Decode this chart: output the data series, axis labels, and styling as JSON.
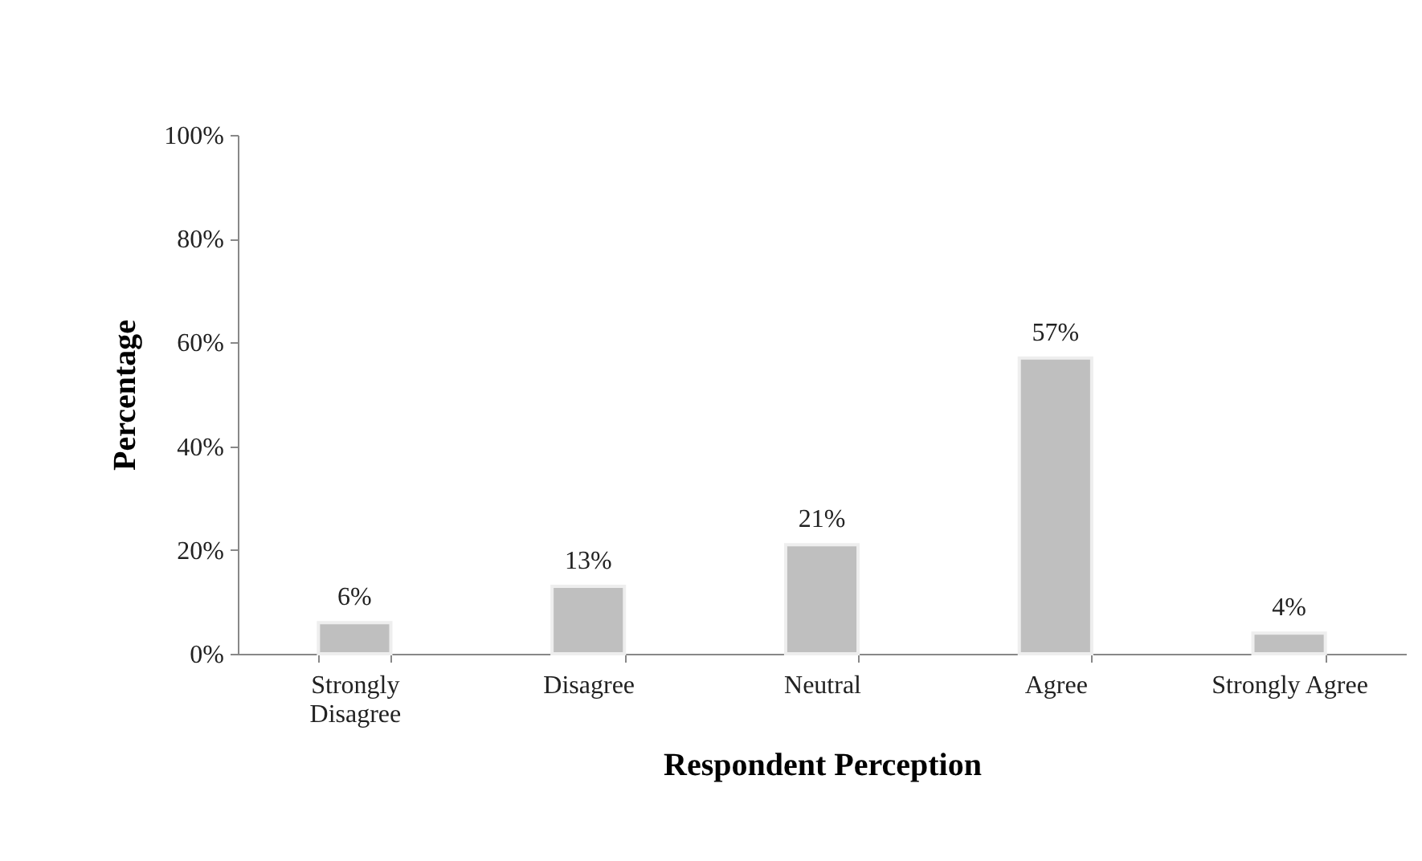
{
  "chart_data": {
    "type": "bar",
    "xlabel": "Respondent Perception",
    "ylabel": "Percentage",
    "categories": [
      "Strongly Disagree",
      "Disagree",
      "Neutral",
      "Agree",
      "Strongly Agree"
    ],
    "values": [
      6,
      13,
      21,
      57,
      4
    ],
    "color": "#bfbfbf",
    "value_labels": [
      "6%",
      "13%",
      "21%",
      "57%",
      "4%"
    ],
    "ylim": [
      0,
      100
    ],
    "yticks": [
      {
        "value": 0,
        "label": "0%"
      },
      {
        "value": 20,
        "label": "20%"
      },
      {
        "value": 40,
        "label": "40%"
      },
      {
        "value": 60,
        "label": "60%"
      },
      {
        "value": 80,
        "label": "80%"
      },
      {
        "value": 100,
        "label": "100%"
      }
    ],
    "grid": false
  }
}
